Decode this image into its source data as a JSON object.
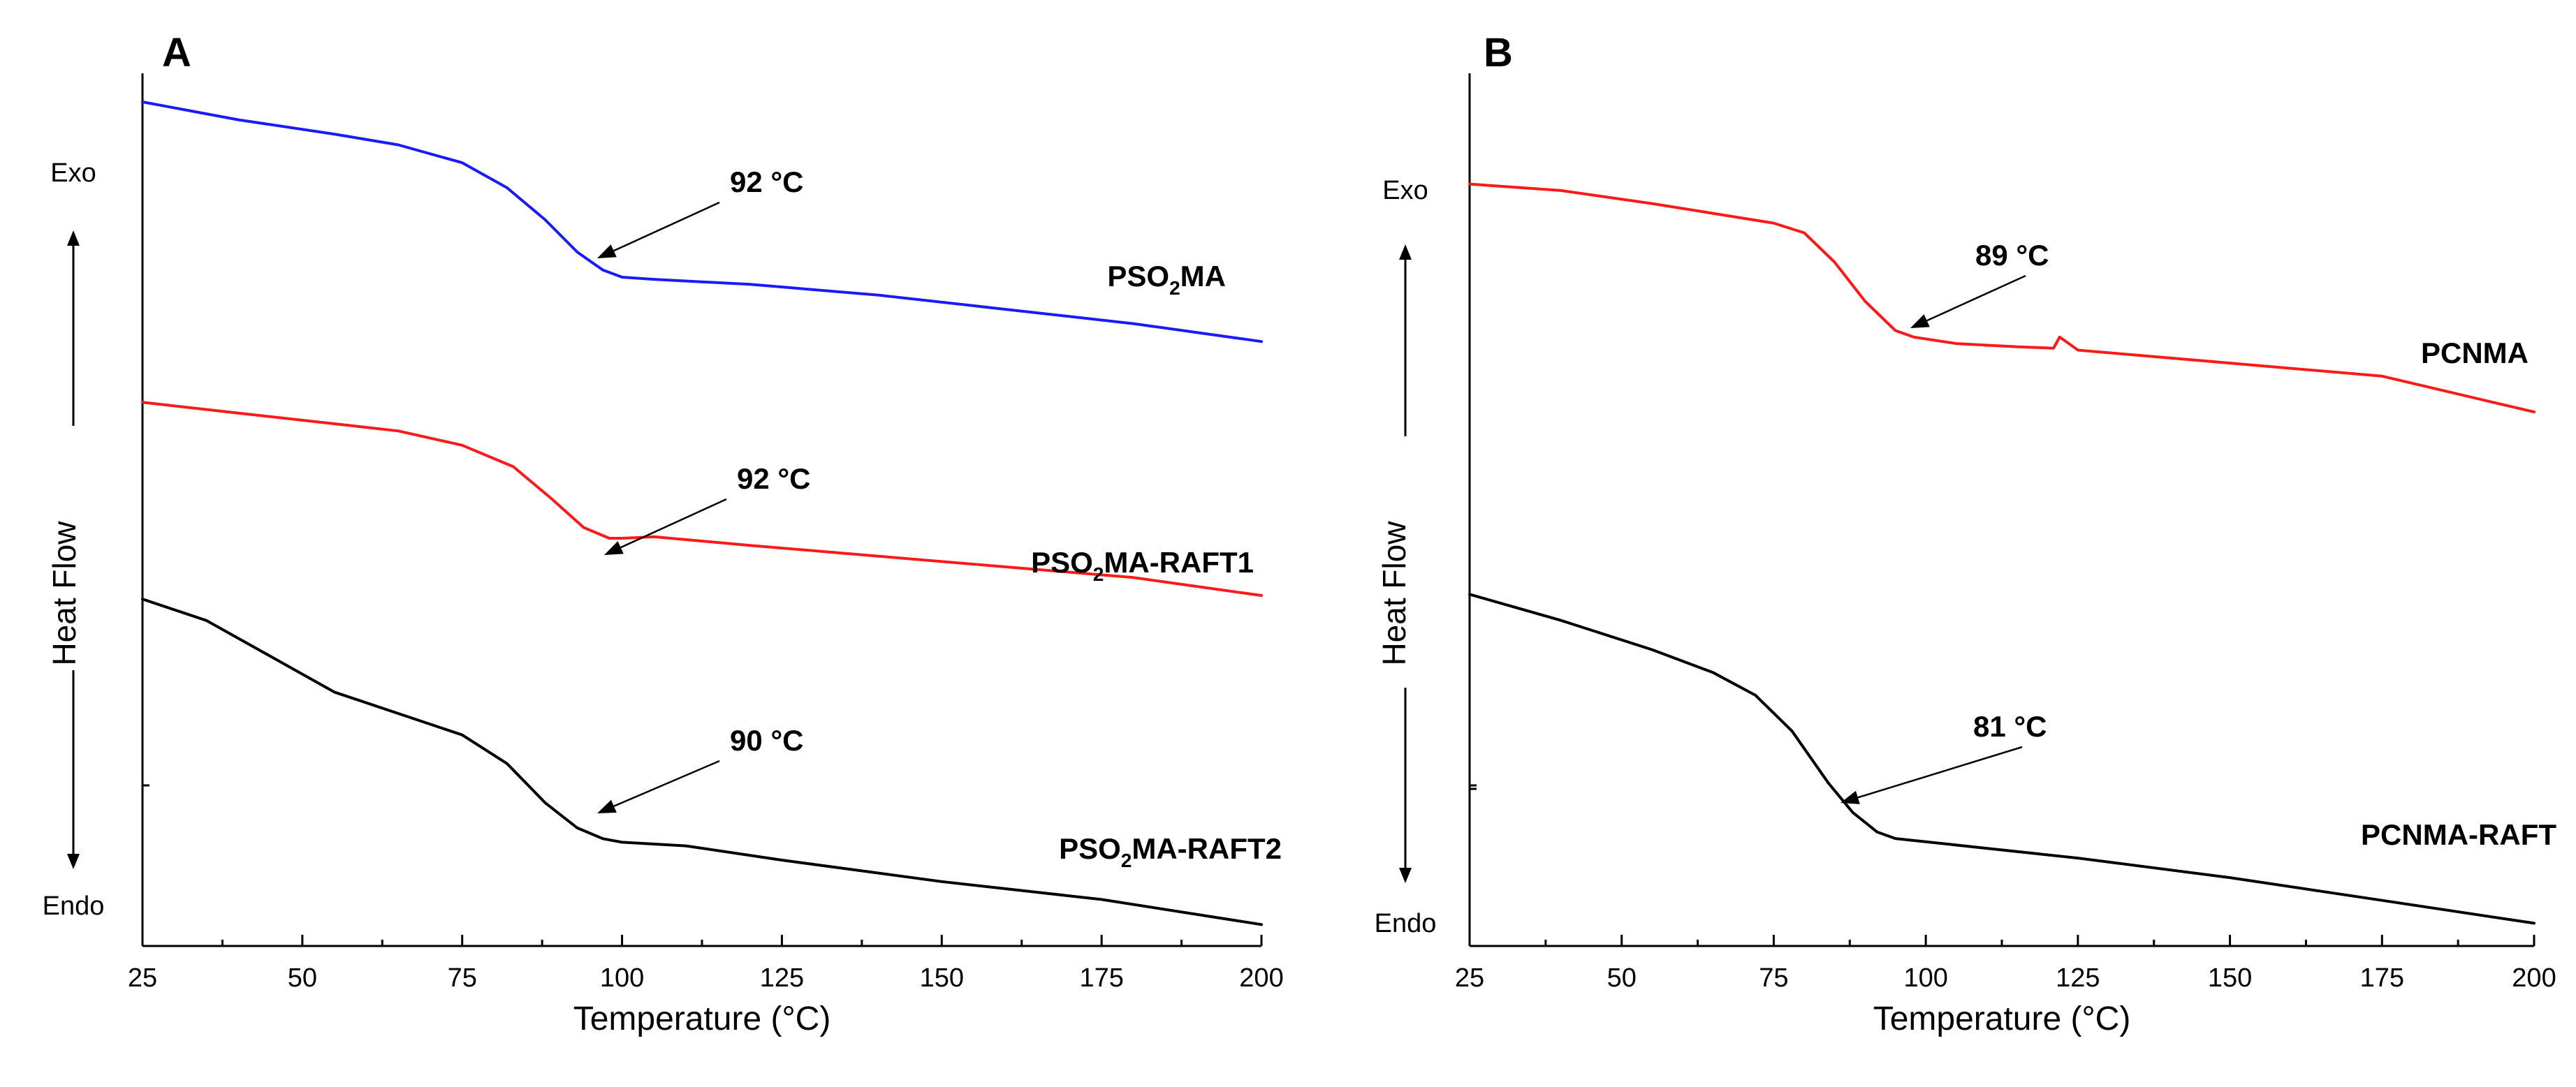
{
  "chart_data": [
    {
      "panel": "A",
      "type": "line",
      "xlabel": "Temperature (°C)",
      "ylabel": "Heat Flow",
      "xlim": [
        25,
        200
      ],
      "xticks": [
        25,
        50,
        75,
        100,
        125,
        150,
        175,
        200
      ],
      "y_top_label": "Exo",
      "y_bottom_label": "Endo",
      "series": [
        {
          "name": "PSO2MA",
          "label_main": "PSO",
          "label_sub": "2",
          "label_suffix": "MA",
          "color": "#1a1aff",
          "x": [
            25,
            40,
            55,
            65,
            75,
            82,
            88,
            93,
            97,
            100,
            105,
            120,
            140,
            160,
            180,
            200
          ],
          "y": [
            8.4,
            8.15,
            7.95,
            7.8,
            7.55,
            7.2,
            6.75,
            6.3,
            6.05,
            5.95,
            5.92,
            5.85,
            5.7,
            5.5,
            5.3,
            5.05
          ],
          "annotation": {
            "text": "92 °C",
            "x": 92
          }
        },
        {
          "name": "PSO2MA-RAFT1",
          "label_main": "PSO",
          "label_sub": "2",
          "label_suffix": "MA-RAFT1",
          "color": "#ff1a1a",
          "x": [
            25,
            40,
            55,
            65,
            75,
            83,
            89,
            94,
            98,
            100,
            105,
            120,
            140,
            160,
            180,
            200
          ],
          "y": [
            4.2,
            4.05,
            3.9,
            3.8,
            3.6,
            3.3,
            2.85,
            2.45,
            2.3,
            2.3,
            2.32,
            2.2,
            2.05,
            1.9,
            1.75,
            1.5
          ],
          "annotation": {
            "text": "92 °C",
            "x": 93
          }
        },
        {
          "name": "PSO2MA-RAFT2",
          "label_main": "PSO",
          "label_sub": "2",
          "label_suffix": "MA-RAFT2",
          "color": "#000000",
          "x": [
            25,
            35,
            45,
            55,
            65,
            75,
            82,
            88,
            93,
            97,
            100,
            110,
            125,
            150,
            175,
            200
          ],
          "y": [
            1.45,
            1.15,
            0.65,
            0.15,
            -0.15,
            -0.45,
            -0.85,
            -1.4,
            -1.75,
            -1.9,
            -1.95,
            -2.0,
            -2.2,
            -2.5,
            -2.75,
            -3.1
          ],
          "annotation": {
            "text": "90 °C",
            "x": 92
          }
        }
      ]
    },
    {
      "panel": "B",
      "type": "line",
      "xlabel": "Temperature (°C)",
      "ylabel": "Heat Flow",
      "xlim": [
        25,
        200
      ],
      "xticks": [
        25,
        50,
        75,
        100,
        125,
        150,
        175,
        200
      ],
      "y_top_label": "Exo",
      "y_bottom_label": "Endo",
      "series": [
        {
          "name": "PCNMA",
          "label_main": "PCNMA",
          "label_sub": "",
          "label_suffix": "",
          "color": "#ff1a1a",
          "x": [
            25,
            40,
            55,
            65,
            75,
            80,
            85,
            90,
            95,
            98,
            105,
            115,
            121,
            122,
            125,
            150,
            175,
            200
          ],
          "y": [
            8.3,
            8.2,
            8.0,
            7.85,
            7.7,
            7.55,
            7.1,
            6.5,
            6.05,
            5.95,
            5.85,
            5.8,
            5.78,
            5.95,
            5.75,
            5.55,
            5.35,
            4.8
          ],
          "annotation": {
            "text": "89 °C",
            "x": 97
          }
        },
        {
          "name": "PCNMA-RAFT",
          "label_main": "PCNMA-RAFT",
          "label_sub": "",
          "label_suffix": "",
          "color": "#000000",
          "x": [
            25,
            40,
            55,
            65,
            72,
            78,
            84,
            88,
            92,
            95,
            100,
            110,
            125,
            150,
            175,
            200
          ],
          "y": [
            2.0,
            1.6,
            1.15,
            0.8,
            0.45,
            -0.1,
            -0.9,
            -1.35,
            -1.65,
            -1.75,
            -1.8,
            -1.9,
            -2.05,
            -2.35,
            -2.7,
            -3.05
          ],
          "annotation": {
            "text": "81 °C",
            "x": 84
          }
        }
      ]
    }
  ]
}
